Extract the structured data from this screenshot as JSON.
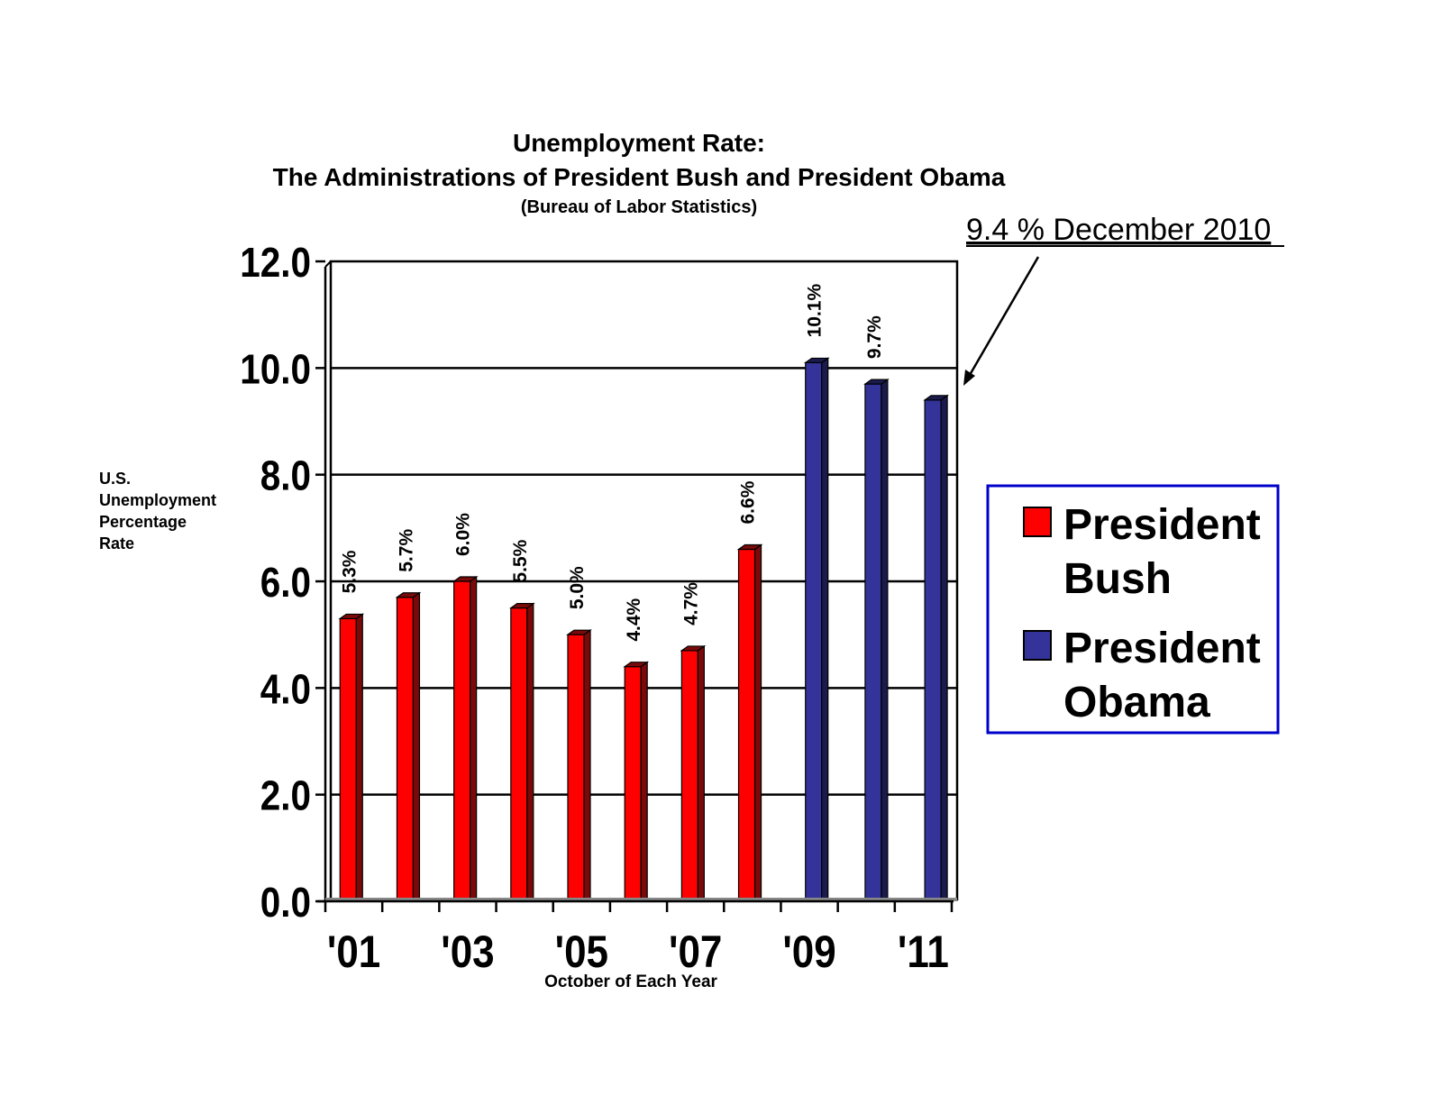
{
  "chart_data": {
    "type": "bar",
    "title": "Unemployment Rate:",
    "subtitle": "The Administrations of President Bush and President Obama",
    "source": "(Bureau of Labor Statistics)",
    "xlabel": "October of Each Year",
    "ylabel_lines": [
      "U.S.",
      "Unemployment",
      "Percentage",
      "Rate"
    ],
    "ylim": [
      0,
      12
    ],
    "yticks": [
      "0.0",
      "2.0",
      "4.0",
      "6.0",
      "8.0",
      "10.0",
      "12.0"
    ],
    "xtick_labels": [
      "'01",
      "'03",
      "'05",
      "'07",
      "'09",
      "'11"
    ],
    "grid": true,
    "legend_placement": "right",
    "series": [
      {
        "name": "President Bush",
        "legend_lines": [
          "President",
          "Bush"
        ],
        "color": "#ff0000",
        "side_color": "#7a0a0a",
        "values": [
          5.3,
          5.7,
          6.0,
          5.5,
          5.0,
          4.4,
          4.7,
          6.6
        ],
        "labels": [
          "5.3%",
          "5.7%",
          "6.0%",
          "5.5%",
          "5.0%",
          "4.4%",
          "4.7%",
          "6.6%"
        ]
      },
      {
        "name": "President Obama",
        "legend_lines": [
          "President",
          "Obama"
        ],
        "color": "#333399",
        "side_color": "#1a1a4d",
        "values": [
          10.1,
          9.7,
          9.4
        ],
        "labels": [
          "10.1%",
          "9.7%",
          ""
        ]
      }
    ],
    "annotation": "9.4 % December 2010"
  }
}
